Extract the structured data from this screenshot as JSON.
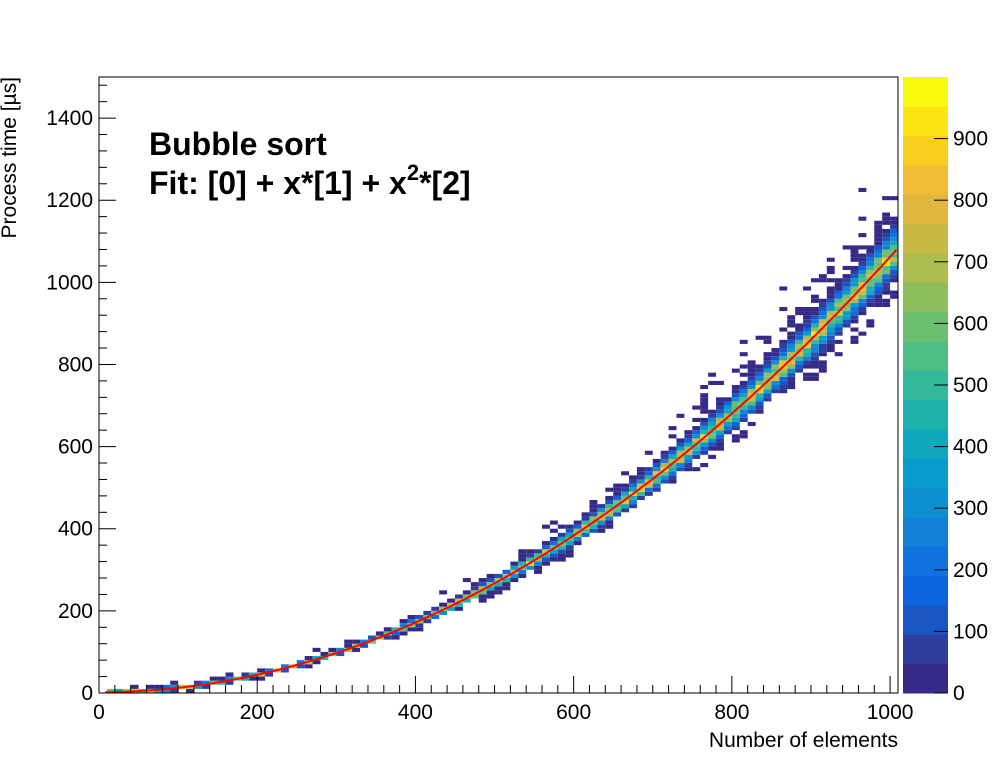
{
  "chart_data": {
    "type": "heatmap",
    "xlabel": "Number of elements",
    "ylabel": "Process time [µs]",
    "annotation_line1": "Bubble sort",
    "annotation_line2_prefix": "Fit: [0] + x*[1] + x",
    "annotation_line2_sup": "2",
    "annotation_line2_suffix": "*[2]",
    "xlim": [
      0,
      1010
    ],
    "ylim": [
      0,
      1500
    ],
    "x_ticks": [
      0,
      200,
      400,
      600,
      800,
      1000
    ],
    "x_tick_labels": [
      "0",
      "200",
      "400",
      "600",
      "800",
      "1000"
    ],
    "y_ticks": [
      0,
      200,
      400,
      600,
      800,
      1000,
      1200,
      1400
    ],
    "y_tick_labels": [
      "0",
      "200",
      "400",
      "600",
      "800",
      "1000",
      "1200",
      "1400"
    ],
    "colorbar": {
      "zlim": [
        0,
        1000
      ],
      "ticks": [
        0,
        100,
        200,
        300,
        400,
        500,
        600,
        700,
        800,
        900
      ],
      "tick_labels": [
        "0",
        "100",
        "200",
        "300",
        "400",
        "500",
        "600",
        "700",
        "800",
        "900"
      ],
      "colors": [
        "#352a87",
        "#2f3e9c",
        "#1b55c4",
        "#0d64e1",
        "#0f72df",
        "#1381d8",
        "#0d90d1",
        "#069ccb",
        "#0ea8bd",
        "#1fb1ab",
        "#32b89a",
        "#4ebd86",
        "#6dbf70",
        "#8ebf5d",
        "#acbd4e",
        "#c7b944",
        "#dfb73d",
        "#f0bc33",
        "#f8ce21",
        "#fbe412",
        "#f9fb0e"
      ]
    },
    "bin_width_x": 10,
    "bin_width_y": 10,
    "fit": {
      "model": "[0] + x*[1] + x^2*[2]",
      "params": [
        2.0,
        0.0,
        0.00106
      ],
      "color": "#ff0000",
      "x_range": [
        8,
        1008
      ]
    },
    "band": {
      "description_values": "center follows fit; inner core high counts, outer scatter low counts",
      "core_peak": 950,
      "spread_coeff": 0.055
    }
  }
}
